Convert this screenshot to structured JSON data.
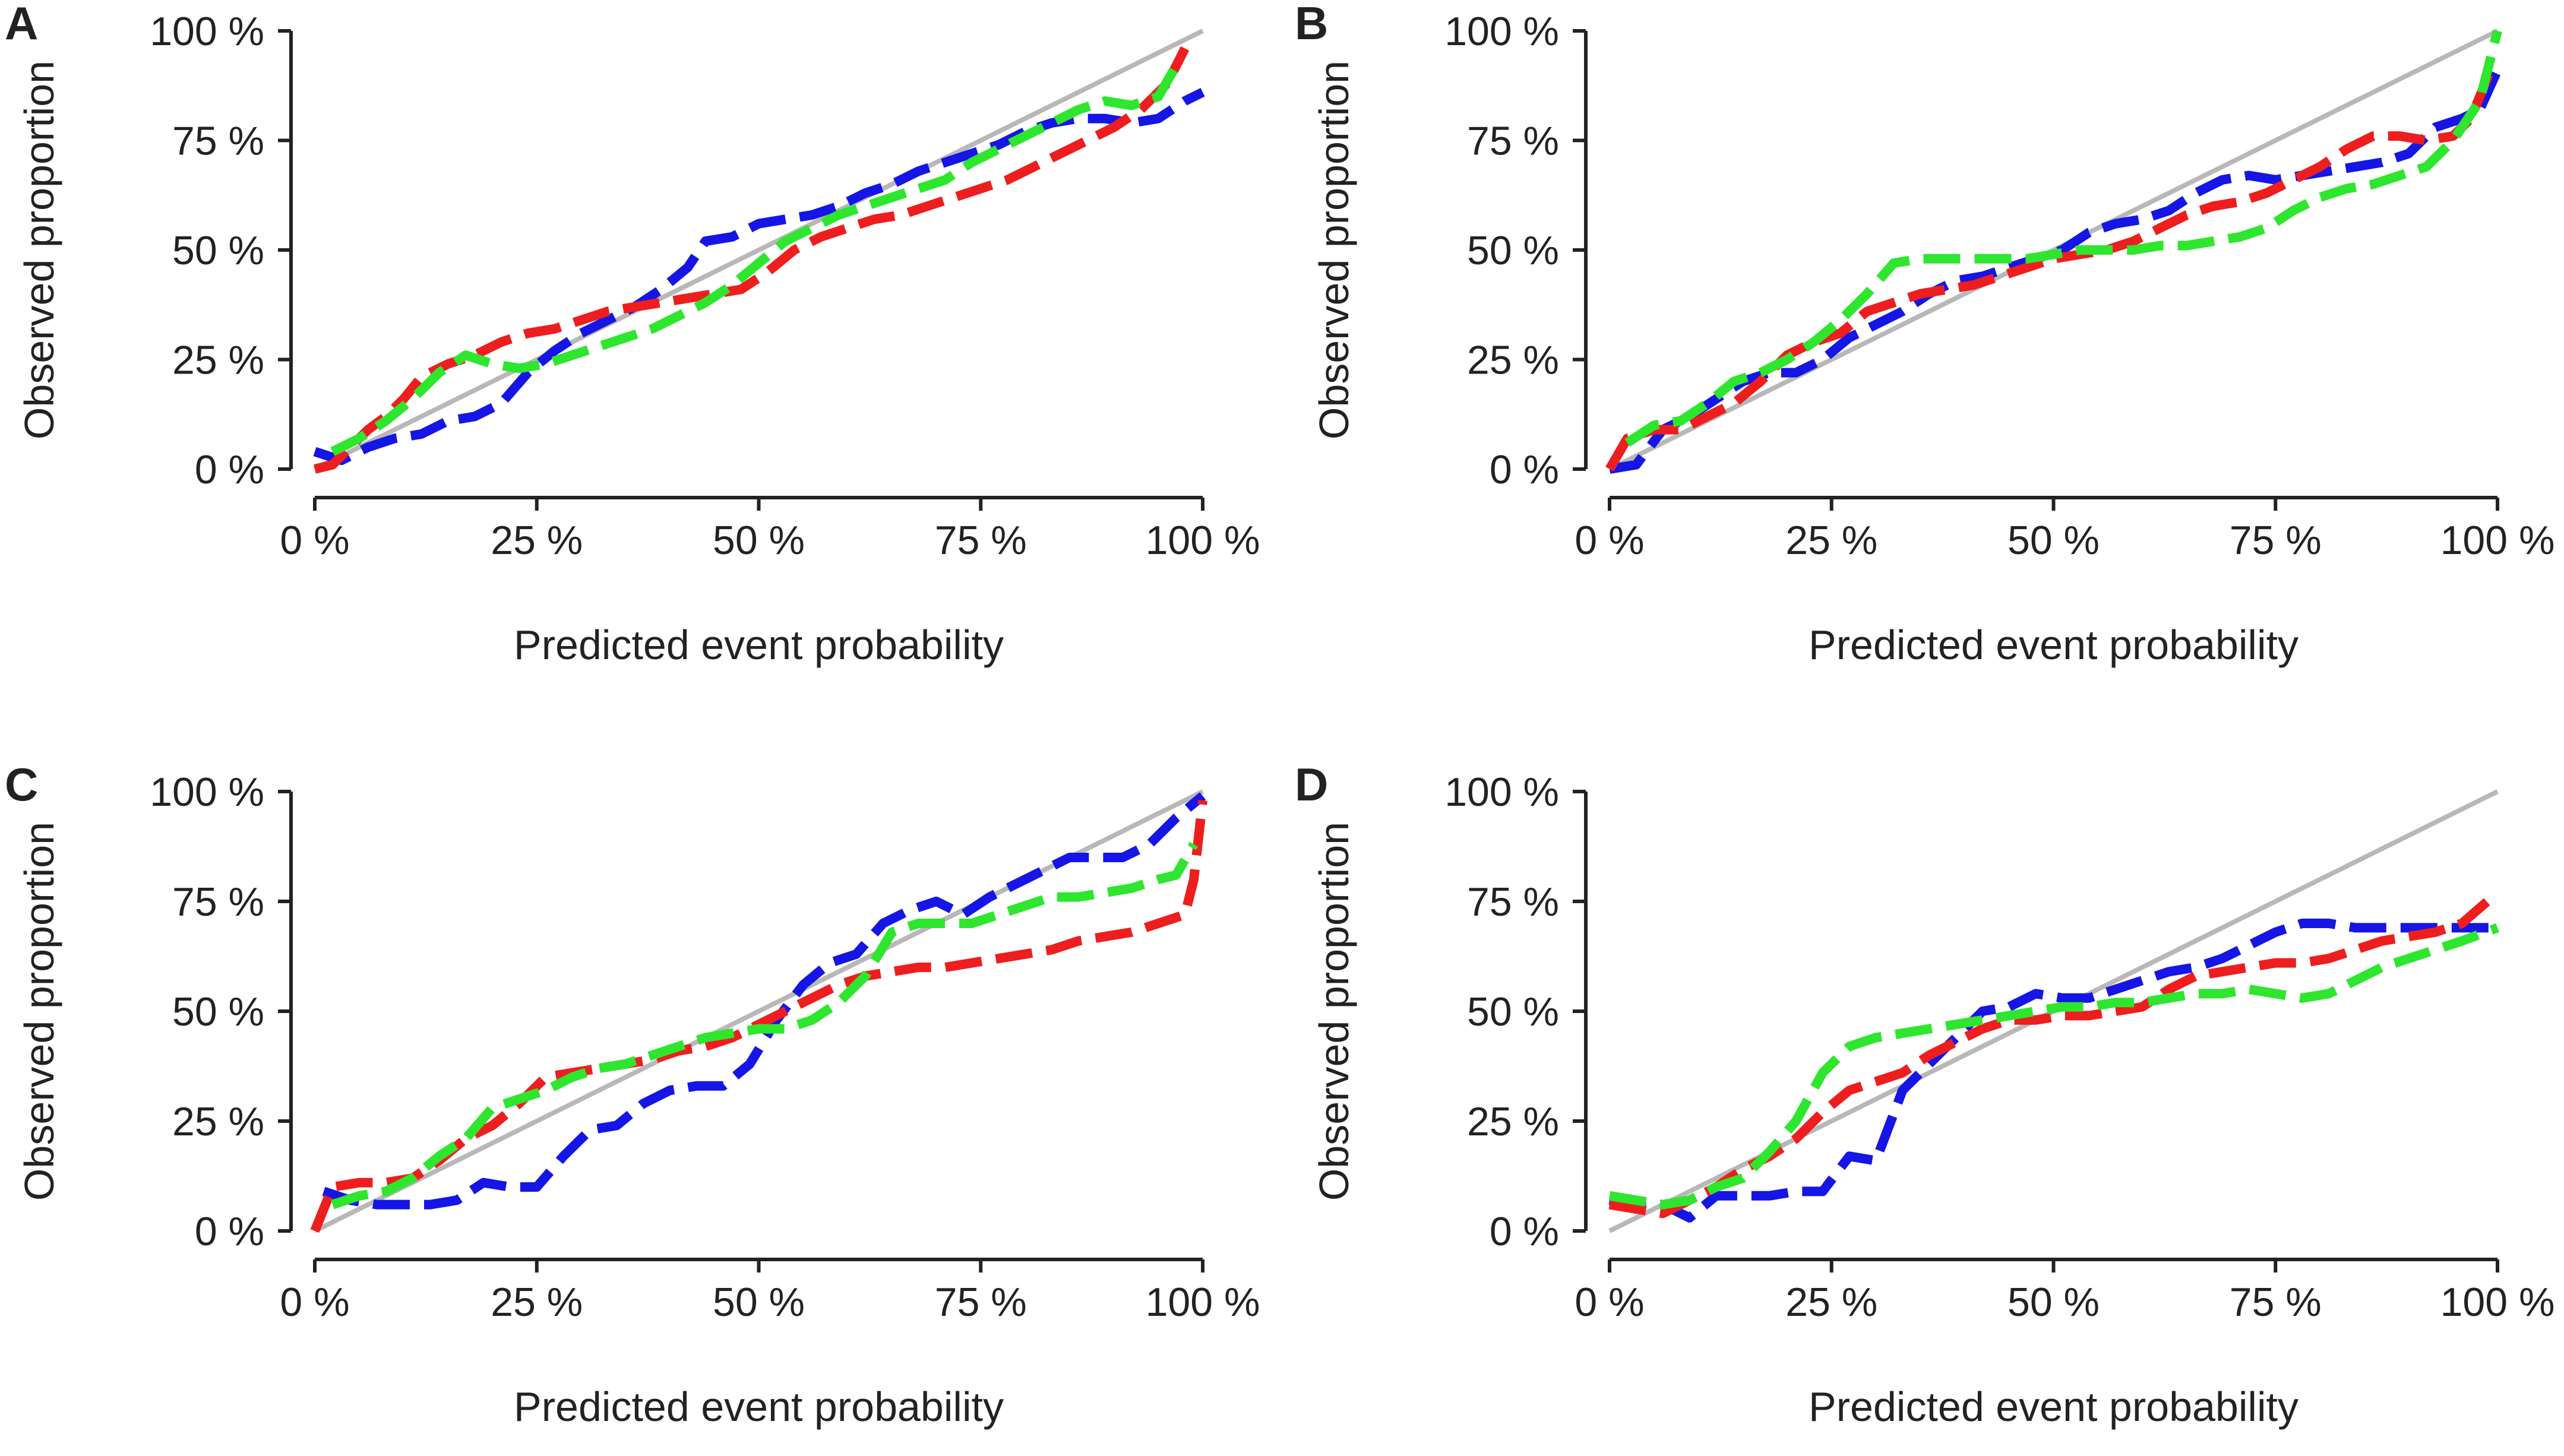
{
  "figure": {
    "xlabel": "Predicted event probability",
    "ylabel": "Observed proportion",
    "tick_labels": [
      "0 %",
      "25 %",
      "50 %",
      "75 %",
      "100 %"
    ],
    "colors": {
      "diagonal": "#b8b8b8",
      "blue": "#1515e6",
      "red": "#ee1e1e",
      "green": "#2ee62e",
      "axis": "#222222"
    }
  },
  "chart_data": [
    {
      "panel": "A",
      "type": "line",
      "xlabel": "Predicted event probability",
      "ylabel": "Observed proportion",
      "xlim": [
        0,
        100
      ],
      "ylim": [
        0,
        100
      ],
      "x_ticks": [
        "0 %",
        "25 %",
        "50 %",
        "75 %",
        "100 %"
      ],
      "y_ticks": [
        "0 %",
        "25 %",
        "50 %",
        "75 %",
        "100 %"
      ],
      "reference": {
        "name": "perfect calibration",
        "x": [
          0,
          100
        ],
        "y": [
          0,
          100
        ],
        "color": "#b8b8b8"
      },
      "series": [
        {
          "name": "blue",
          "color": "#1515e6",
          "x": [
            0,
            3,
            6,
            9,
            12,
            15,
            18,
            21,
            24,
            27,
            30,
            33,
            36,
            39,
            42,
            44,
            47,
            50,
            53,
            56,
            59,
            62,
            65,
            68,
            71,
            74,
            77,
            80,
            83,
            86,
            89,
            92,
            95,
            98,
            100
          ],
          "y": [
            4,
            2,
            5,
            7,
            8,
            11,
            12,
            15,
            22,
            27,
            31,
            34,
            37,
            41,
            46,
            52,
            53,
            56,
            57,
            58,
            60,
            63,
            65,
            68,
            70,
            72,
            74,
            77,
            79,
            80,
            80,
            79,
            80,
            84,
            86
          ]
        },
        {
          "name": "red",
          "color": "#ee1e1e",
          "x": [
            0,
            2,
            4,
            6,
            8,
            10,
            12,
            15,
            18,
            21,
            24,
            27,
            30,
            33,
            36,
            39,
            42,
            45,
            48,
            51,
            54,
            57,
            60,
            63,
            66,
            69,
            72,
            75,
            78,
            81,
            84,
            87,
            90,
            93,
            96,
            98
          ],
          "y": [
            0,
            1,
            5,
            9,
            12,
            16,
            21,
            24,
            26,
            29,
            31,
            32,
            34,
            36,
            37,
            38,
            39,
            40,
            41,
            45,
            50,
            53,
            55,
            57,
            58,
            60,
            62,
            64,
            66,
            69,
            72,
            75,
            78,
            82,
            88,
            96
          ]
        },
        {
          "name": "green",
          "color": "#2ee62e",
          "x": [
            2,
            5,
            8,
            11,
            14,
            17,
            20,
            23,
            26,
            29,
            32,
            35,
            38,
            41,
            44,
            47,
            50,
            53,
            56,
            59,
            62,
            65,
            68,
            71,
            74,
            77,
            80,
            83,
            86,
            89,
            92,
            95,
            97
          ],
          "y": [
            4,
            7,
            11,
            16,
            22,
            26,
            24,
            23,
            24,
            26,
            28,
            30,
            32,
            35,
            38,
            42,
            47,
            52,
            55,
            58,
            60,
            62,
            64,
            66,
            70,
            73,
            76,
            79,
            82,
            84,
            83,
            85,
            92
          ]
        }
      ]
    },
    {
      "panel": "B",
      "type": "line",
      "xlabel": "Predicted event probability",
      "ylabel": "Observed proportion",
      "xlim": [
        0,
        100
      ],
      "ylim": [
        0,
        100
      ],
      "x_ticks": [
        "0 %",
        "25 %",
        "50 %",
        "75 %",
        "100 %"
      ],
      "y_ticks": [
        "0 %",
        "25 %",
        "50 %",
        "75 %",
        "100 %"
      ],
      "reference": {
        "name": "perfect calibration",
        "x": [
          0,
          100
        ],
        "y": [
          0,
          100
        ],
        "color": "#b8b8b8"
      },
      "series": [
        {
          "name": "blue",
          "color": "#1515e6",
          "x": [
            0,
            3,
            6,
            9,
            12,
            15,
            18,
            21,
            24,
            27,
            30,
            33,
            36,
            39,
            42,
            45,
            48,
            51,
            54,
            57,
            60,
            63,
            66,
            69,
            72,
            75,
            78,
            81,
            84,
            87,
            90,
            93,
            96,
            98,
            100
          ],
          "y": [
            0,
            1,
            9,
            12,
            16,
            20,
            22,
            22,
            25,
            30,
            33,
            36,
            40,
            43,
            44,
            46,
            48,
            50,
            54,
            56,
            57,
            59,
            63,
            66,
            67,
            66,
            67,
            68,
            69,
            70,
            72,
            78,
            80,
            82,
            91
          ]
        },
        {
          "name": "red",
          "color": "#ee1e1e",
          "x": [
            0,
            2,
            5,
            8,
            11,
            14,
            17,
            20,
            23,
            26,
            29,
            32,
            35,
            38,
            41,
            44,
            47,
            50,
            53,
            56,
            59,
            62,
            65,
            68,
            71,
            74,
            77,
            80,
            83,
            86,
            89,
            92,
            95,
            97,
            99,
            100
          ],
          "y": [
            0,
            7,
            9,
            9,
            12,
            15,
            20,
            26,
            29,
            31,
            36,
            38,
            40,
            41,
            42,
            44,
            46,
            48,
            49,
            50,
            52,
            55,
            58,
            60,
            61,
            63,
            66,
            69,
            73,
            76,
            76,
            75,
            76,
            80,
            90,
            92
          ]
        },
        {
          "name": "green",
          "color": "#2ee62e",
          "x": [
            2,
            5,
            8,
            11,
            14,
            17,
            20,
            23,
            26,
            29,
            32,
            35,
            38,
            41,
            44,
            47,
            50,
            53,
            56,
            59,
            62,
            65,
            68,
            71,
            74,
            77,
            80,
            83,
            86,
            89,
            92,
            95,
            98,
            100
          ],
          "y": [
            6,
            10,
            11,
            15,
            20,
            22,
            25,
            29,
            34,
            40,
            47,
            48,
            48,
            48,
            48,
            48,
            49,
            50,
            50,
            50,
            51,
            51,
            52,
            53,
            55,
            59,
            62,
            64,
            65,
            67,
            69,
            75,
            84,
            100
          ]
        }
      ]
    },
    {
      "panel": "C",
      "type": "line",
      "xlabel": "Predicted event probability",
      "ylabel": "Observed proportion",
      "xlim": [
        0,
        100
      ],
      "ylim": [
        0,
        100
      ],
      "x_ticks": [
        "0 %",
        "25 %",
        "50 %",
        "75 %",
        "100 %"
      ],
      "y_ticks": [
        "0 %",
        "25 %",
        "50 %",
        "75 %",
        "100 %"
      ],
      "reference": {
        "name": "perfect calibration",
        "x": [
          0,
          100
        ],
        "y": [
          0,
          100
        ],
        "color": "#b8b8b8"
      },
      "series": [
        {
          "name": "blue",
          "color": "#1515e6",
          "x": [
            1,
            4,
            7,
            10,
            13,
            16,
            19,
            22,
            25,
            28,
            31,
            34,
            37,
            40,
            43,
            46,
            49,
            52,
            55,
            58,
            61,
            64,
            67,
            70,
            73,
            76,
            79,
            82,
            85,
            88,
            91,
            94,
            97,
            100
          ],
          "y": [
            9,
            7,
            6,
            6,
            6,
            7,
            11,
            10,
            10,
            17,
            23,
            24,
            29,
            32,
            33,
            33,
            38,
            48,
            56,
            61,
            63,
            70,
            73,
            75,
            72,
            76,
            79,
            82,
            85,
            85,
            85,
            88,
            94,
            99
          ]
        },
        {
          "name": "red",
          "color": "#ee1e1e",
          "x": [
            0,
            2,
            5,
            8,
            11,
            14,
            17,
            20,
            23,
            26,
            29,
            32,
            35,
            38,
            41,
            44,
            47,
            50,
            53,
            56,
            59,
            62,
            65,
            68,
            71,
            74,
            77,
            80,
            83,
            86,
            89,
            92,
            95,
            98,
            99,
            100
          ],
          "y": [
            0,
            10,
            11,
            11,
            12,
            16,
            21,
            24,
            29,
            35,
            36,
            37,
            38,
            39,
            41,
            42,
            44,
            47,
            50,
            53,
            56,
            58,
            59,
            60,
            60,
            61,
            62,
            63,
            64,
            66,
            67,
            68,
            70,
            72,
            80,
            98
          ]
        },
        {
          "name": "green",
          "color": "#2ee62e",
          "x": [
            2,
            5,
            8,
            11,
            14,
            17,
            20,
            23,
            26,
            29,
            32,
            35,
            38,
            41,
            44,
            47,
            50,
            53,
            56,
            59,
            62,
            65,
            68,
            71,
            74,
            77,
            80,
            83,
            86,
            89,
            92,
            95,
            97,
            99
          ],
          "y": [
            6,
            8,
            9,
            12,
            17,
            21,
            28,
            30,
            32,
            35,
            37,
            38,
            40,
            42,
            44,
            45,
            46,
            46,
            48,
            52,
            58,
            68,
            70,
            70,
            70,
            72,
            74,
            76,
            76,
            77,
            78,
            80,
            81,
            88
          ]
        }
      ]
    },
    {
      "panel": "D",
      "type": "line",
      "xlabel": "Predicted event probability",
      "ylabel": "Observed proportion",
      "xlim": [
        0,
        100
      ],
      "ylim": [
        0,
        100
      ],
      "x_ticks": [
        "0 %",
        "25 %",
        "50 %",
        "75 %",
        "100 %"
      ],
      "y_ticks": [
        "0 %",
        "25 %",
        "50 %",
        "75 %",
        "100 %"
      ],
      "reference": {
        "name": "perfect calibration",
        "x": [
          0,
          100
        ],
        "y": [
          0,
          100
        ],
        "color": "#b8b8b8"
      },
      "series": [
        {
          "name": "blue",
          "color": "#1515e6",
          "x": [
            0,
            3,
            6,
            9,
            12,
            15,
            18,
            21,
            24,
            27,
            30,
            33,
            36,
            39,
            42,
            45,
            48,
            51,
            54,
            57,
            60,
            63,
            66,
            69,
            72,
            75,
            78,
            81,
            84,
            87,
            90,
            93,
            96,
            100
          ],
          "y": [
            7,
            6,
            6,
            3,
            8,
            8,
            8,
            9,
            9,
            17,
            16,
            32,
            38,
            44,
            50,
            51,
            54,
            53,
            53,
            55,
            57,
            59,
            60,
            62,
            65,
            68,
            70,
            70,
            69,
            69,
            69,
            69,
            69,
            69
          ]
        },
        {
          "name": "red",
          "color": "#ee1e1e",
          "x": [
            0,
            3,
            6,
            9,
            12,
            15,
            18,
            21,
            24,
            27,
            30,
            33,
            36,
            39,
            42,
            45,
            48,
            51,
            54,
            57,
            60,
            63,
            66,
            69,
            72,
            75,
            78,
            81,
            84,
            87,
            90,
            93,
            96,
            100
          ],
          "y": [
            6,
            5,
            4,
            7,
            10,
            14,
            17,
            21,
            27,
            32,
            34,
            36,
            40,
            43,
            46,
            48,
            48,
            49,
            49,
            50,
            51,
            55,
            58,
            59,
            60,
            61,
            61,
            62,
            64,
            66,
            67,
            68,
            70,
            77
          ]
        },
        {
          "name": "green",
          "color": "#2ee62e",
          "x": [
            0,
            3,
            6,
            9,
            12,
            15,
            18,
            21,
            24,
            27,
            30,
            33,
            36,
            39,
            42,
            45,
            48,
            51,
            54,
            57,
            60,
            63,
            66,
            69,
            72,
            75,
            78,
            81,
            84,
            87,
            90,
            93,
            96,
            100
          ],
          "y": [
            8,
            7,
            6,
            7,
            10,
            12,
            18,
            25,
            36,
            42,
            44,
            45,
            46,
            47,
            48,
            49,
            50,
            51,
            51,
            52,
            52,
            53,
            54,
            54,
            55,
            54,
            53,
            54,
            57,
            60,
            62,
            64,
            66,
            69
          ]
        }
      ]
    }
  ]
}
